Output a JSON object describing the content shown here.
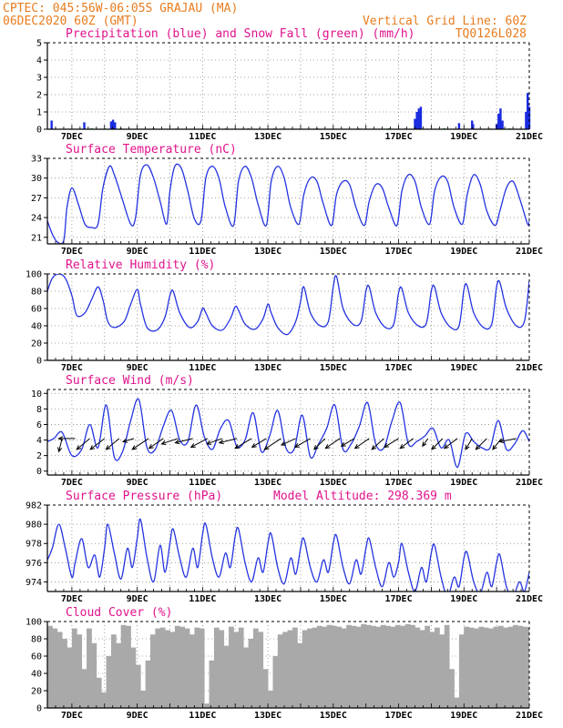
{
  "header": {
    "line1_left": "CPTEC:   045:56W-06:05S   GRAJAU (MA)",
    "line2_left": "06DEC2020 60Z (GMT)",
    "line2_right": "Vertical Grid Line: 60Z",
    "line3_right": "TQ0126L028"
  },
  "colors": {
    "header": "#e87c1e",
    "title": "#e0138c",
    "line": "#2433e0",
    "precip": "#1a2be0",
    "snow": "#22aa22",
    "cloud": "#a9a9a9",
    "grid": "#888888"
  },
  "x_axis": {
    "labels": [
      "7DEC",
      "9DEC",
      "11DEC",
      "13DEC",
      "15DEC",
      "17DEC",
      "19DEC",
      "21DEC"
    ],
    "start_day": 6.25,
    "end_day": 21.0
  },
  "chart_data": [
    {
      "type": "bar",
      "title": "Precipitation (blue) and Snow Fall (green) (mm/h)",
      "ylim": [
        0,
        5
      ],
      "yticks": [
        0,
        1,
        2,
        3,
        4,
        5
      ],
      "series": [
        {
          "name": "Precipitation",
          "color": "#1a2be0",
          "x": [
            6.38,
            7.38,
            8.2,
            8.26,
            8.32,
            17.5,
            17.56,
            17.62,
            17.68,
            18.85,
            19.25,
            19.28,
            20.0,
            20.06,
            20.12,
            20.18,
            20.9,
            20.95,
            21.0
          ],
          "values": [
            0.5,
            0.4,
            0.45,
            0.55,
            0.4,
            0.6,
            1.0,
            1.2,
            1.3,
            0.35,
            0.5,
            0.3,
            0.3,
            0.9,
            1.2,
            0.5,
            1.0,
            2.1,
            1.3
          ]
        },
        {
          "name": "Snow Fall",
          "color": "#22aa22",
          "x": [
            7.6,
            8.0,
            8.5,
            9.5,
            10.2,
            11.0,
            11.7,
            12.4,
            13.2,
            14.5,
            15.8,
            16.7,
            17.2,
            18.4,
            19.8,
            20.4
          ],
          "values": [
            0.05,
            0.04,
            0.06,
            0.05,
            0.04,
            0.05,
            0.04,
            0.05,
            0.04,
            0.05,
            0.04,
            0.05,
            0.04,
            0.05,
            0.04,
            0.05
          ]
        }
      ]
    },
    {
      "type": "line",
      "title": "Surface Temperature (nC)",
      "ylim": [
        20,
        33
      ],
      "yticks": [
        21,
        24,
        27,
        30,
        33
      ],
      "x": [
        6.25,
        6.4,
        6.55,
        6.75,
        6.85,
        7.0,
        7.2,
        7.4,
        7.6,
        7.8,
        7.95,
        8.15,
        8.3,
        8.5,
        8.8,
        8.95,
        9.1,
        9.3,
        9.5,
        9.7,
        9.9,
        10.0,
        10.15,
        10.35,
        10.55,
        10.75,
        10.95,
        11.1,
        11.3,
        11.5,
        11.7,
        11.95,
        12.1,
        12.3,
        12.5,
        12.7,
        12.95,
        13.1,
        13.3,
        13.5,
        13.7,
        13.95,
        14.1,
        14.3,
        14.5,
        14.7,
        14.95,
        15.1,
        15.3,
        15.5,
        15.7,
        15.95,
        16.1,
        16.3,
        16.5,
        16.7,
        16.95,
        17.1,
        17.3,
        17.5,
        17.7,
        17.95,
        18.1,
        18.3,
        18.5,
        18.7,
        18.95,
        19.1,
        19.3,
        19.5,
        19.7,
        19.95,
        20.1,
        20.3,
        20.5,
        20.7,
        20.95,
        21.0
      ],
      "values": [
        23.5,
        21.5,
        20.3,
        20.5,
        25.5,
        28.5,
        26.0,
        23.0,
        22.5,
        23.0,
        28.5,
        31.8,
        30.5,
        27.5,
        23.0,
        24.0,
        30.5,
        32.0,
        30.0,
        26.5,
        23.0,
        28.0,
        31.8,
        31.5,
        28.0,
        23.8,
        23.5,
        30.0,
        31.8,
        30.0,
        25.5,
        22.8,
        29.5,
        31.8,
        30.0,
        26.0,
        22.8,
        29.5,
        31.8,
        30.0,
        25.5,
        23.0,
        27.5,
        30.0,
        29.5,
        26.0,
        22.8,
        27.5,
        29.5,
        29.0,
        25.5,
        22.8,
        26.5,
        29.0,
        28.5,
        25.5,
        22.8,
        28.0,
        30.5,
        29.5,
        25.5,
        23.0,
        28.0,
        30.2,
        29.5,
        25.5,
        23.0,
        27.5,
        30.5,
        29.0,
        25.0,
        22.8,
        25.0,
        28.5,
        29.5,
        27.0,
        23.0,
        23.5
      ]
    },
    {
      "type": "line",
      "title": "Relative Humidity (%)",
      "ylim": [
        0,
        100
      ],
      "yticks": [
        0,
        20,
        40,
        60,
        80,
        100
      ],
      "x": [
        6.25,
        6.4,
        6.6,
        6.8,
        7.0,
        7.15,
        7.4,
        7.6,
        7.8,
        7.95,
        8.1,
        8.3,
        8.6,
        8.8,
        9.0,
        9.1,
        9.3,
        9.6,
        9.85,
        10.0,
        10.1,
        10.3,
        10.6,
        10.85,
        11.0,
        11.1,
        11.3,
        11.6,
        11.85,
        12.0,
        12.1,
        12.3,
        12.6,
        12.85,
        13.0,
        13.1,
        13.3,
        13.6,
        13.85,
        14.0,
        14.1,
        14.3,
        14.6,
        14.85,
        15.0,
        15.1,
        15.3,
        15.6,
        15.85,
        16.0,
        16.1,
        16.3,
        16.6,
        16.85,
        17.0,
        17.1,
        17.3,
        17.6,
        17.85,
        18.0,
        18.1,
        18.3,
        18.6,
        18.85,
        19.0,
        19.1,
        19.3,
        19.6,
        19.85,
        20.0,
        20.1,
        20.3,
        20.6,
        20.85,
        21.0
      ],
      "values": [
        80,
        95,
        100,
        95,
        75,
        52,
        55,
        70,
        85,
        70,
        45,
        38,
        45,
        65,
        82,
        65,
        38,
        35,
        50,
        75,
        80,
        55,
        38,
        45,
        60,
        55,
        40,
        35,
        48,
        62,
        58,
        42,
        36,
        48,
        65,
        55,
        38,
        30,
        45,
        68,
        85,
        55,
        40,
        45,
        85,
        97,
        60,
        42,
        45,
        80,
        85,
        55,
        38,
        42,
        78,
        83,
        55,
        40,
        43,
        80,
        85,
        55,
        38,
        40,
        82,
        86,
        55,
        38,
        42,
        85,
        90,
        60,
        40,
        45,
        92
      ]
    },
    {
      "type": "line",
      "title": "Surface Wind (m/s)",
      "ylim": [
        -0.5,
        10.5
      ],
      "yticks": [
        0,
        2,
        4,
        6,
        8,
        10
      ],
      "x": [
        6.25,
        6.45,
        6.7,
        7.0,
        7.3,
        7.55,
        7.8,
        8.05,
        8.3,
        8.55,
        8.8,
        9.05,
        9.3,
        9.55,
        9.8,
        10.05,
        10.3,
        10.55,
        10.8,
        11.05,
        11.3,
        11.55,
        11.8,
        12.05,
        12.3,
        12.55,
        12.8,
        13.05,
        13.3,
        13.55,
        13.8,
        14.05,
        14.3,
        14.55,
        14.8,
        15.05,
        15.3,
        15.55,
        15.8,
        16.05,
        16.3,
        16.55,
        16.8,
        17.05,
        17.3,
        17.55,
        17.8,
        18.05,
        18.3,
        18.55,
        18.8,
        19.05,
        19.3,
        19.55,
        19.8,
        20.05,
        20.3,
        20.55,
        20.8,
        21.0
      ],
      "values": [
        3.8,
        4.2,
        5.0,
        2.0,
        2.8,
        6.0,
        3.0,
        8.5,
        1.8,
        2.5,
        6.5,
        9.2,
        3.0,
        2.8,
        5.8,
        7.8,
        4.0,
        3.8,
        8.5,
        4.5,
        2.8,
        5.5,
        6.5,
        3.2,
        4.0,
        7.5,
        2.5,
        4.5,
        7.8,
        3.0,
        2.8,
        7.2,
        1.8,
        3.5,
        5.5,
        8.5,
        2.8,
        3.5,
        5.8,
        8.8,
        3.5,
        3.0,
        6.5,
        8.8,
        3.5,
        3.8,
        4.5,
        5.5,
        3.0,
        4.0,
        0.5,
        4.8,
        3.8,
        3.0,
        3.0,
        6.5,
        2.8,
        3.5,
        5.2,
        3.8
      ],
      "vectors_x": [
        6.7,
        7.1,
        7.55,
        8.0,
        8.45,
        8.9,
        9.35,
        9.8,
        10.25,
        10.7,
        11.15,
        11.6,
        12.05,
        12.5,
        12.95,
        13.4,
        13.85,
        14.3,
        14.75,
        15.2,
        15.65,
        16.1,
        16.55,
        17.0,
        17.45,
        17.9,
        18.35,
        18.8,
        19.25,
        19.7,
        20.15,
        20.6
      ],
      "vectors_u": [
        -0.3,
        -1.5,
        -1.2,
        -1.3,
        -1.2,
        -1.0,
        -1.5,
        -1.3,
        -1.5,
        -1.6,
        -1.5,
        -1.4,
        -1.6,
        -1.5,
        -1.3,
        -1.5,
        -1.3,
        -1.4,
        -1.0,
        -1.3,
        -1.2,
        -1.3,
        -1.1,
        -1.3,
        -1.2,
        -0.5,
        -1.0,
        -1.2,
        -0.6,
        -1.0,
        -0.8,
        -1.5
      ],
      "vectors_v": [
        -1.2,
        0.0,
        -1.0,
        -1.0,
        -1.0,
        -0.3,
        -1.0,
        -0.9,
        -0.5,
        -0.4,
        -0.8,
        -0.5,
        -0.4,
        -0.9,
        -0.8,
        -1.0,
        -0.6,
        -0.8,
        -1.0,
        -0.9,
        -0.7,
        -0.9,
        -1.0,
        -0.8,
        -0.9,
        -0.7,
        -1.0,
        -0.9,
        -1.0,
        -1.0,
        -1.0,
        -0.3
      ]
    },
    {
      "type": "line",
      "title": "Surface Pressure (hPa)",
      "subtitle": "Model Altitude: 298.369  m",
      "ylim": [
        973,
        982
      ],
      "yticks": [
        974,
        976,
        978,
        980,
        982
      ],
      "x": [
        6.25,
        6.4,
        6.6,
        6.8,
        7.0,
        7.1,
        7.3,
        7.5,
        7.7,
        7.85,
        8.0,
        8.1,
        8.3,
        8.5,
        8.7,
        8.85,
        9.0,
        9.1,
        9.3,
        9.5,
        9.7,
        9.85,
        10.0,
        10.1,
        10.3,
        10.5,
        10.7,
        10.85,
        11.0,
        11.1,
        11.3,
        11.5,
        11.7,
        11.85,
        12.0,
        12.1,
        12.3,
        12.5,
        12.7,
        12.85,
        13.0,
        13.1,
        13.3,
        13.5,
        13.7,
        13.85,
        14.0,
        14.1,
        14.3,
        14.5,
        14.7,
        14.85,
        15.0,
        15.1,
        15.3,
        15.5,
        15.7,
        15.85,
        16.0,
        16.1,
        16.3,
        16.5,
        16.7,
        16.85,
        17.0,
        17.1,
        17.3,
        17.5,
        17.7,
        17.85,
        18.0,
        18.1,
        18.3,
        18.5,
        18.7,
        18.85,
        19.0,
        19.1,
        19.3,
        19.5,
        19.7,
        19.85,
        20.0,
        20.1,
        20.3,
        20.5,
        20.7,
        20.85,
        21.0
      ],
      "values": [
        976.3,
        977.5,
        980.0,
        977.5,
        974.5,
        976.0,
        978.5,
        975.5,
        976.8,
        974.5,
        977.5,
        980.0,
        977.0,
        974.3,
        977.5,
        975.5,
        978.5,
        980.5,
        976.5,
        974.0,
        977.8,
        975.0,
        978.0,
        979.5,
        976.5,
        974.5,
        977.5,
        975.5,
        979.0,
        980.0,
        976.5,
        974.5,
        977.0,
        975.5,
        978.8,
        979.5,
        976.0,
        974.0,
        976.5,
        975.0,
        978.0,
        979.0,
        975.5,
        973.8,
        976.5,
        974.8,
        977.5,
        978.5,
        975.5,
        974.0,
        976.3,
        975.0,
        978.0,
        978.8,
        975.5,
        973.8,
        976.3,
        974.8,
        977.5,
        978.5,
        975.5,
        973.5,
        976.0,
        974.5,
        976.0,
        978.0,
        975.0,
        973.0,
        975.5,
        974.0,
        977.0,
        977.8,
        974.5,
        972.5,
        974.5,
        973.5,
        976.5,
        977.0,
        974.0,
        972.8,
        975.0,
        973.5,
        976.0,
        976.8,
        973.5,
        972.5,
        974.0,
        973.0,
        975.0
      ]
    },
    {
      "type": "bar",
      "title": "Cloud Cover (%)",
      "ylim": [
        0,
        100
      ],
      "yticks": [
        0,
        20,
        40,
        60,
        80,
        100
      ],
      "x": [
        6.25,
        6.4,
        6.55,
        6.7,
        6.85,
        7.0,
        7.15,
        7.3,
        7.45,
        7.6,
        7.75,
        7.9,
        8.05,
        8.2,
        8.35,
        8.5,
        8.65,
        8.8,
        8.95,
        9.1,
        9.25,
        9.4,
        9.55,
        9.7,
        9.85,
        10.0,
        10.15,
        10.3,
        10.45,
        10.6,
        10.75,
        10.9,
        11.05,
        11.2,
        11.35,
        11.5,
        11.65,
        11.8,
        11.95,
        12.1,
        12.25,
        12.4,
        12.55,
        12.7,
        12.85,
        13.0,
        13.15,
        13.3,
        13.45,
        13.6,
        13.75,
        13.9,
        14.05,
        14.2,
        14.35,
        14.5,
        14.65,
        14.8,
        14.95,
        15.1,
        15.25,
        15.4,
        15.55,
        15.7,
        15.85,
        16.0,
        16.15,
        16.3,
        16.45,
        16.6,
        16.75,
        16.9,
        17.05,
        17.2,
        17.35,
        17.5,
        17.65,
        17.8,
        17.95,
        18.1,
        18.25,
        18.4,
        18.55,
        18.7,
        18.85,
        19.0,
        19.15,
        19.3,
        19.45,
        19.6,
        19.75,
        19.9,
        20.05,
        20.2,
        20.35,
        20.5,
        20.65,
        20.8,
        20.95
      ],
      "values": [
        95,
        92,
        88,
        80,
        70,
        92,
        85,
        45,
        92,
        75,
        35,
        18,
        60,
        85,
        75,
        96,
        95,
        70,
        50,
        20,
        55,
        85,
        92,
        93,
        90,
        88,
        95,
        94,
        92,
        85,
        93,
        92,
        5,
        55,
        93,
        90,
        72,
        94,
        88,
        93,
        70,
        80,
        92,
        88,
        45,
        20,
        60,
        85,
        88,
        90,
        93,
        75,
        90,
        92,
        93,
        95,
        94,
        96,
        95,
        94,
        92,
        96,
        95,
        94,
        97,
        96,
        95,
        94,
        96,
        95,
        94,
        96,
        95,
        97,
        96,
        93,
        90,
        95,
        88,
        93,
        85,
        96,
        45,
        12,
        85,
        94,
        93,
        92,
        94,
        93,
        92,
        94,
        95,
        93,
        94,
        96,
        95,
        94,
        93
      ]
    }
  ]
}
